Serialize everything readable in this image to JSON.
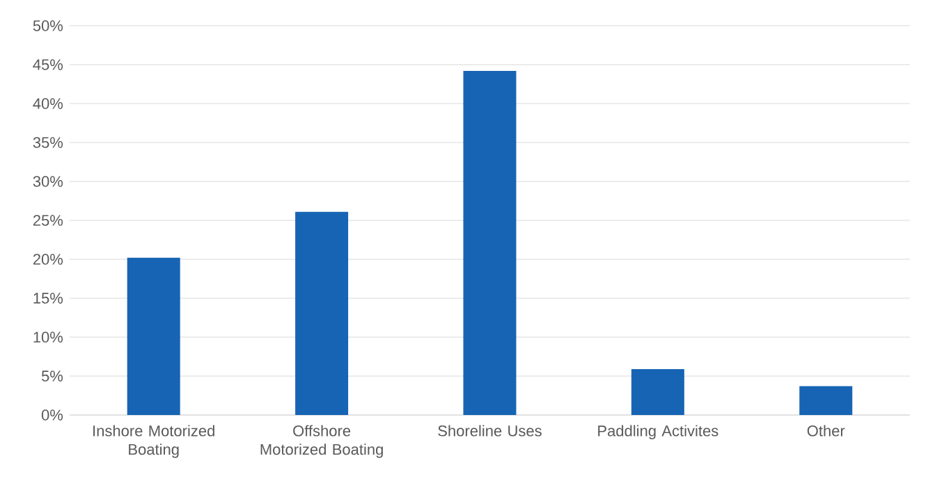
{
  "chart_data": {
    "type": "bar",
    "categories": [
      "Inshore Motorized Boating",
      "Offshore Motorized Boating",
      "Shoreline Uses",
      "Paddling Activites",
      "Other"
    ],
    "values": [
      20.2,
      26.1,
      44.2,
      5.9,
      3.7
    ],
    "color": "#1764b4",
    "ylim": [
      0,
      50
    ],
    "yticks": [
      {
        "value": 0,
        "label": "0%"
      },
      {
        "value": 5,
        "label": "5%"
      },
      {
        "value": 10,
        "label": "10%"
      },
      {
        "value": 15,
        "label": "15%"
      },
      {
        "value": 20,
        "label": "20%"
      },
      {
        "value": 25,
        "label": "25%"
      },
      {
        "value": 30,
        "label": "30%"
      },
      {
        "value": 35,
        "label": "35%"
      },
      {
        "value": 40,
        "label": "40%"
      },
      {
        "value": 45,
        "label": "45%"
      },
      {
        "value": 50,
        "label": "50%"
      }
    ],
    "grid": "y"
  }
}
